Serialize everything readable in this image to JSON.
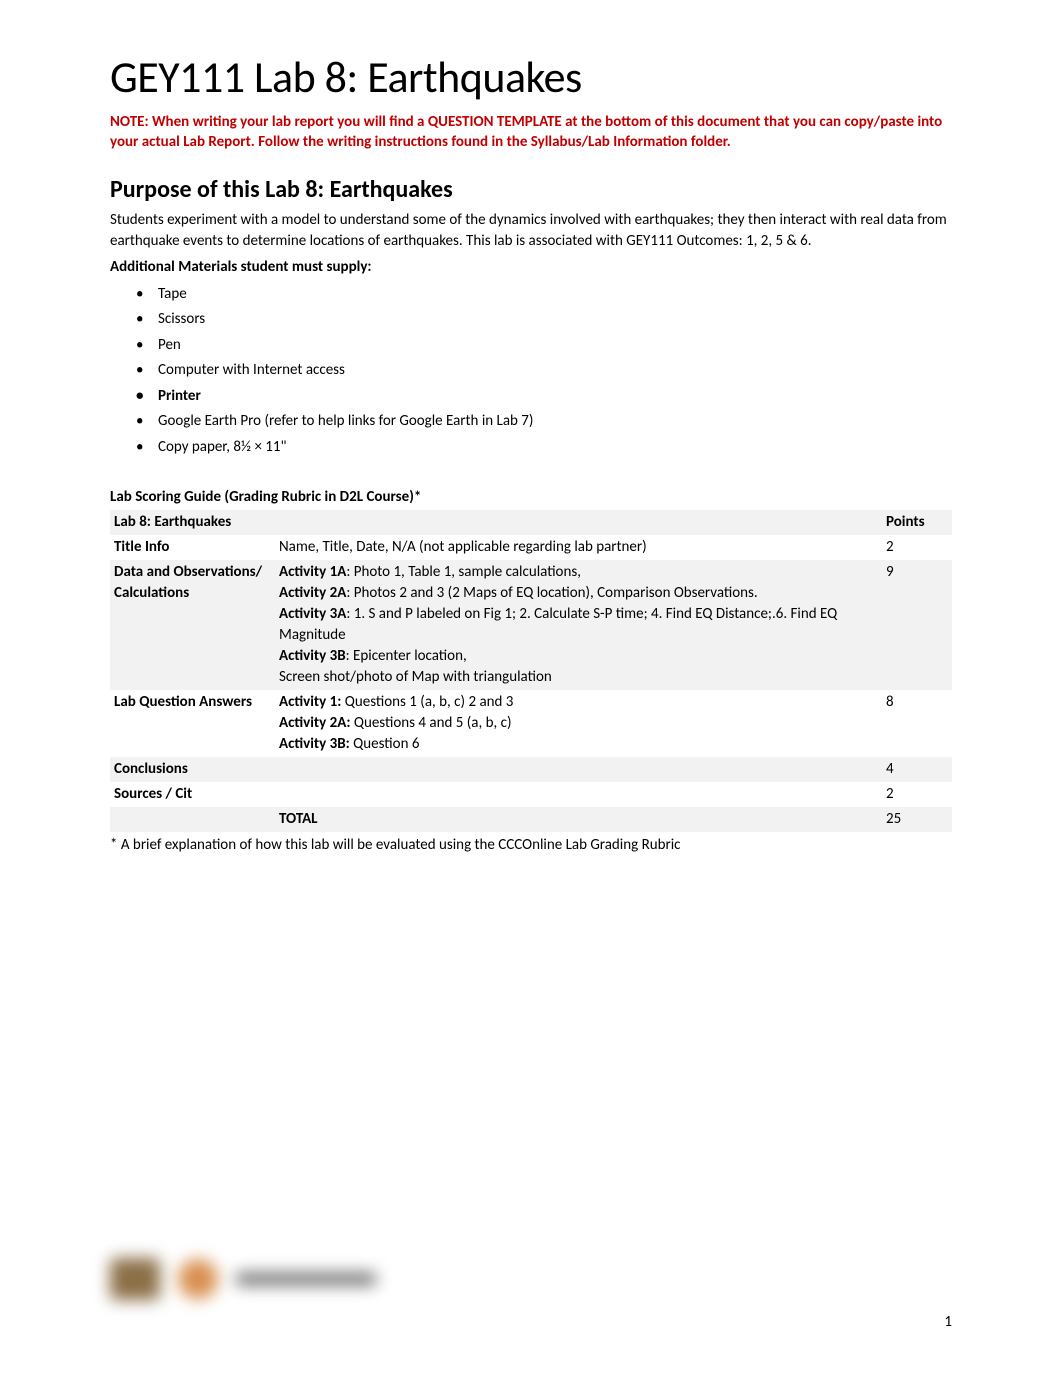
{
  "title": "GEY111 Lab 8: Earthquakes",
  "note": "NOTE: When writing your lab report you will find a QUESTION TEMPLATE at the bottom of this document that you can copy/paste into your actual Lab Report.  Follow the writing instructions found in the Syllabus/Lab Information folder.",
  "purpose": {
    "heading": "Purpose of this Lab 8: Earthquakes",
    "text": "Students experiment with a model to understand some of the dynamics involved with earthquakes; they then interact with real data from earthquake events to determine locations of earthquakes. This lab is associated with GEY111 Outcomes: 1, 2, 5 & 6."
  },
  "materials": {
    "heading": "Additional Materials student must supply:",
    "items": [
      {
        "text": "Tape",
        "bold": false
      },
      {
        "text": "Scissors",
        "bold": false
      },
      {
        "text": "Pen",
        "bold": false
      },
      {
        "text": "Computer with Internet access",
        "bold": false
      },
      {
        "text": "Printer",
        "bold": true
      },
      {
        "text": "Google Earth Pro (refer to help links for Google Earth in Lab 7)",
        "bold": false
      },
      {
        "text": "Copy paper, 8½ × 11\"",
        "bold": false
      }
    ]
  },
  "rubric": {
    "heading": "Lab Scoring Guide (Grading Rubric in D2L Course)*",
    "header_label": "Lab 8: Earthquakes",
    "header_points": "Points",
    "rows": [
      {
        "label": "Title Info",
        "desc_lines": [
          {
            "prefix": "",
            "text": "Name, Title, Date, N/A (not applicable regarding lab partner)"
          }
        ],
        "points": "2",
        "shaded": false
      },
      {
        "label": "Data and Observations/ Calculations",
        "desc_lines": [
          {
            "prefix": "Activity 1A",
            "text": ":  Photo 1, Table 1, sample calculations,"
          },
          {
            "prefix": "Activity 2A",
            "text": ":  Photos 2 and 3 (2 Maps of EQ location), Comparison Observations."
          },
          {
            "prefix": "Activity 3A",
            "text": ": 1. S and P labeled on Fig 1;   2. Calculate S-P time; 4. Find EQ Distance;.6. Find EQ Magnitude"
          },
          {
            "prefix": "Activity 3B",
            "text": ":  Epicenter location,"
          },
          {
            "prefix": "",
            "text": "Screen shot/photo of Map with triangulation"
          }
        ],
        "points": "9",
        "shaded": true
      },
      {
        "label": "Lab Question Answers",
        "desc_lines": [
          {
            "prefix": "Activity 1:",
            "text": " Questions 1 (a, b, c) 2 and 3"
          },
          {
            "prefix": "Activity 2A:",
            "text": " Questions 4 and 5 (a, b, c)"
          },
          {
            "prefix": "Activity 3B:",
            "text": " Question 6"
          }
        ],
        "points": "8",
        "shaded": false
      },
      {
        "label": "Conclusions",
        "desc_lines": [
          {
            "prefix": "",
            "text": ""
          }
        ],
        "points": "4",
        "shaded": true
      },
      {
        "label": "Sources / Cit",
        "desc_lines": [
          {
            "prefix": "",
            "text": ""
          }
        ],
        "points": "2",
        "shaded": false
      },
      {
        "label": "",
        "desc_lines": [
          {
            "prefix": "TOTAL",
            "text": ""
          }
        ],
        "points": "25",
        "shaded": true
      }
    ],
    "footnote": "* A brief explanation of how this lab will be evaluated using the CCCOnline Lab Grading Rubric"
  },
  "page_number": "1",
  "colors": {
    "note_color": "#c00000",
    "shade_color": "#f2f2f2",
    "text_color": "#000000",
    "background": "#ffffff"
  },
  "typography": {
    "title_fontsize": 44,
    "heading_fontsize": 24,
    "body_fontsize": 15,
    "font_family": "Calibri"
  }
}
